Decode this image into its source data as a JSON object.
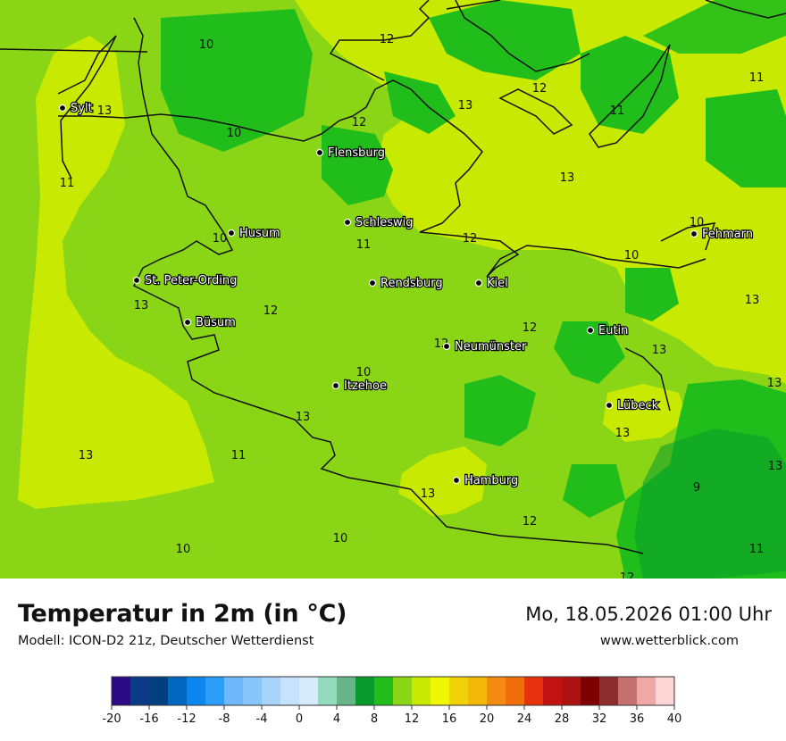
{
  "header": {
    "title": "Temperatur in 2m (in °C)",
    "subtitle": "Modell: ICON-D2 21z, Deutscher Wetterdienst",
    "datetime": "Mo, 18.05.2026 01:00 Uhr",
    "website": "www.wetterblick.com"
  },
  "cities": [
    {
      "name": "Sylt"
    },
    {
      "name": "Flensburg"
    },
    {
      "name": "Schleswig"
    },
    {
      "name": "Husum"
    },
    {
      "name": "Fehmarn"
    },
    {
      "name": "St. Peter-Ording"
    },
    {
      "name": "Rendsburg"
    },
    {
      "name": "Kiel"
    },
    {
      "name": "Büsum"
    },
    {
      "name": "Eutin"
    },
    {
      "name": "Neumünster"
    },
    {
      "name": "Itzehoe"
    },
    {
      "name": "Lübeck"
    },
    {
      "name": "Hamburg"
    }
  ],
  "isotherm_labels": [
    "10",
    "12",
    "13",
    "11",
    "10",
    "12",
    "13",
    "12",
    "11",
    "13",
    "11",
    "10",
    "11",
    "10",
    "12",
    "10",
    "13",
    "12",
    "12",
    "13",
    "13",
    "13",
    "12",
    "10",
    "13",
    "13",
    "13",
    "11",
    "13",
    "13",
    "9",
    "12",
    "10",
    "10",
    "11",
    "12"
  ],
  "legend": {
    "colors": [
      "#2e0b86",
      "#0c3a86",
      "#003f80",
      "#0366bf",
      "#0a88f0",
      "#2d9ef8",
      "#6fb8fb",
      "#86c6fb",
      "#a8d3fb",
      "#c6e2fc",
      "#d8ebfd",
      "#94dbbd",
      "#68b58a",
      "#0a9a2c",
      "#21be1b",
      "#8ad616",
      "#c8ea02",
      "#f0f704",
      "#f1d208",
      "#f3b808",
      "#f38a12",
      "#f16e0d",
      "#e6320c",
      "#c21212",
      "#ad1212",
      "#7e0101",
      "#8e2d2d",
      "#c2716f",
      "#f0a8a7",
      "#fdd5d5"
    ],
    "ticks": [
      "-20",
      "-16",
      "-12",
      "-8",
      "-4",
      "0",
      "4",
      "8",
      "12",
      "16",
      "20",
      "24",
      "28",
      "32",
      "36",
      "40"
    ]
  }
}
